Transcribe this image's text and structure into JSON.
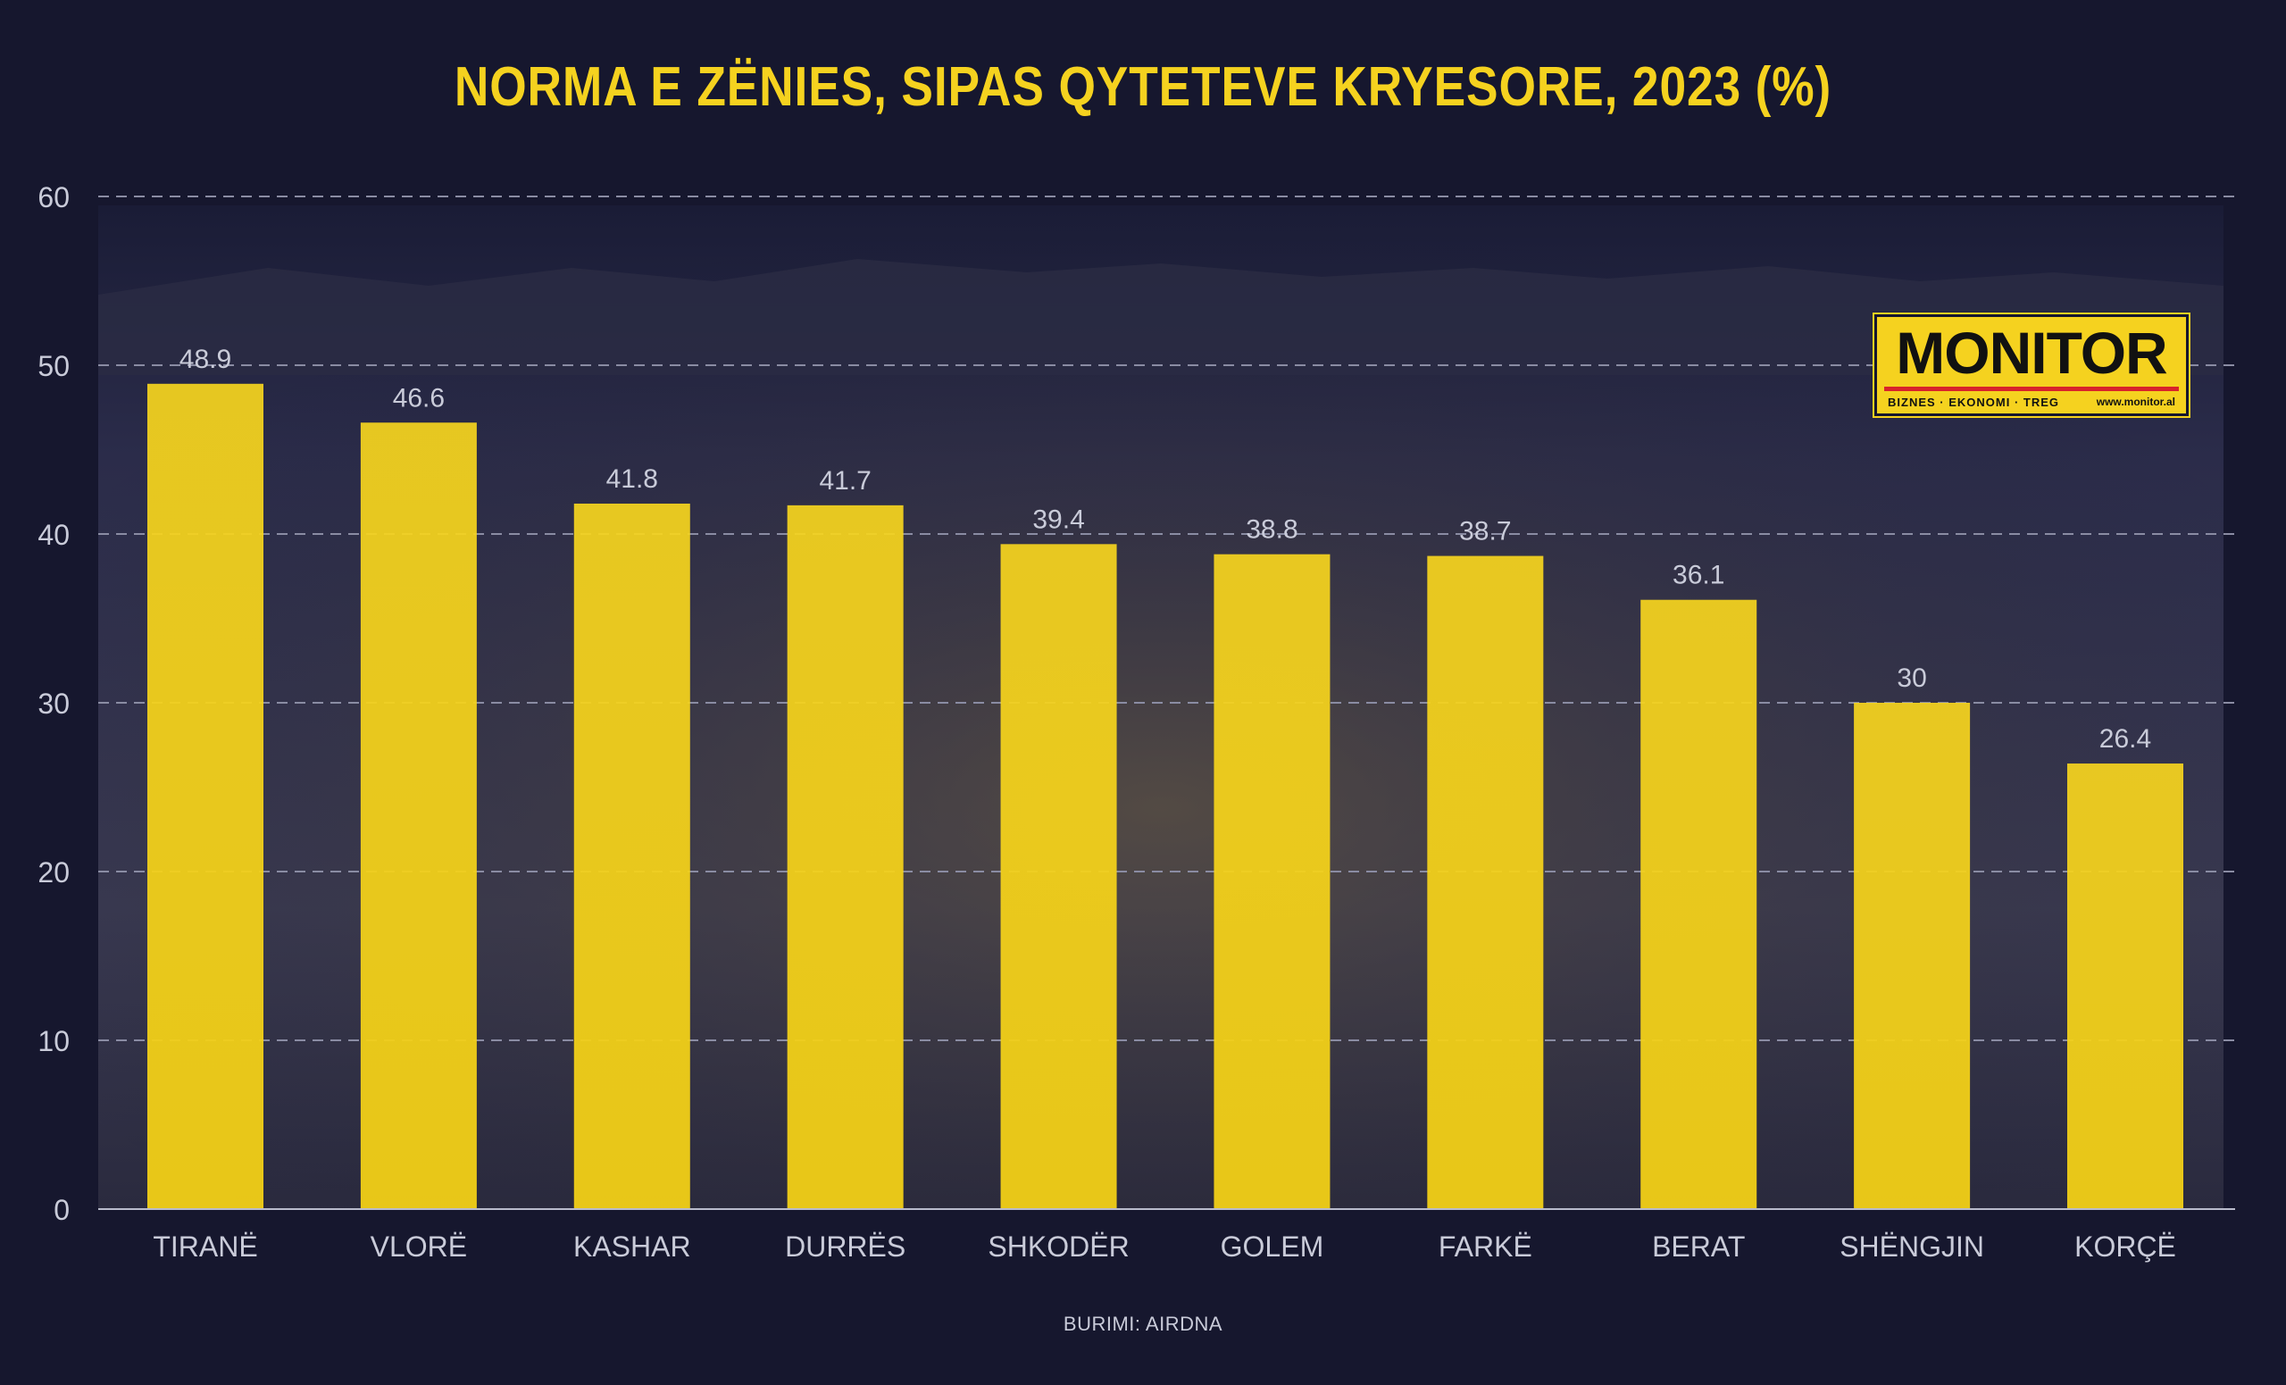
{
  "chart_data": {
    "type": "bar",
    "title": "NORMA E ZËNIES, SIPAS QYTETEVE KRYESORE, 2023 (%)",
    "xlabel": "",
    "ylabel": "",
    "categories": [
      "TIRANË",
      "VLORË",
      "KASHAR",
      "DURRËS",
      "SHKODËR",
      "GOLEM",
      "FARKË",
      "BERAT",
      "SHËNGJIN",
      "KORÇË"
    ],
    "values": [
      48.9,
      46.6,
      41.8,
      41.7,
      39.4,
      38.8,
      38.7,
      36.1,
      30,
      26.4
    ],
    "value_labels": [
      "48.9",
      "46.6",
      "41.8",
      "41.7",
      "39.4",
      "38.8",
      "38.7",
      "36.1",
      "30",
      "26.4"
    ],
    "y_ticks": [
      "0",
      "10",
      "20",
      "30",
      "40",
      "50",
      "60"
    ],
    "ylim": [
      0,
      60
    ],
    "grid": true,
    "legend": "none"
  },
  "source": "BURIMI: AIRDNA",
  "logo": {
    "word": "MONITOR",
    "tagline": "BIZNES · EKONOMI · TREG",
    "url": "www.monitor.al"
  },
  "colors": {
    "background": "#16172e",
    "title": "#f5d21f",
    "bar": "#f5d21f",
    "axis_text": "#c9cbd9",
    "grid": "#8a8ca3"
  }
}
